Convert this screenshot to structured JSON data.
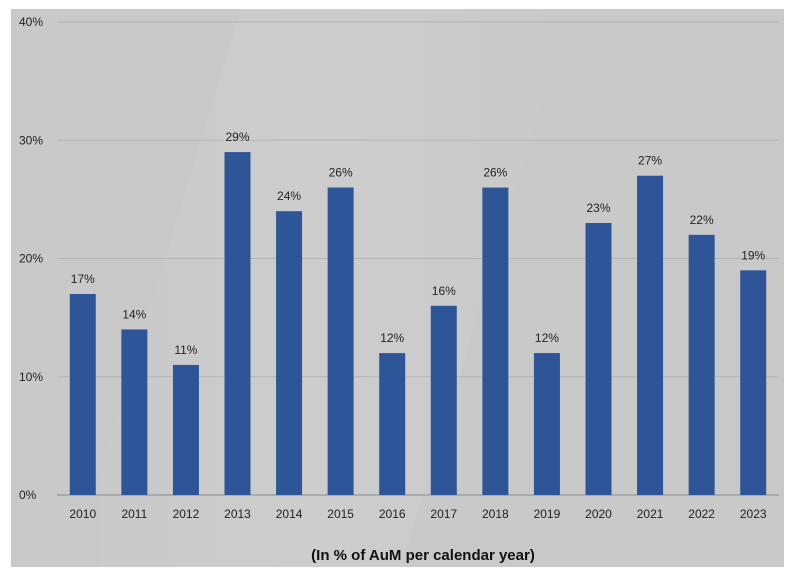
{
  "colors": {
    "bar": "#2d5597",
    "background": "#c9c9c9",
    "grid": "#b4b4b4",
    "axis": "#8a8a8a"
  },
  "chart_data": {
    "type": "bar",
    "categories": [
      "2010",
      "2011",
      "2012",
      "2013",
      "2014",
      "2015",
      "2016",
      "2017",
      "2018",
      "2019",
      "2020",
      "2021",
      "2022",
      "2023"
    ],
    "values": [
      17,
      14,
      11,
      29,
      24,
      26,
      12,
      16,
      26,
      12,
      23,
      27,
      22,
      19
    ],
    "data_labels": [
      "17%",
      "14%",
      "11%",
      "29%",
      "24%",
      "26%",
      "12%",
      "16%",
      "26%",
      "12%",
      "23%",
      "27%",
      "22%",
      "19%"
    ],
    "y_ticks": [
      0,
      10,
      20,
      30,
      40
    ],
    "y_tick_labels": [
      "0%",
      "10%",
      "20%",
      "30%",
      "40%"
    ],
    "ylim": [
      0,
      40
    ],
    "xlabel": "(In % of AuM per calendar year)",
    "ylabel": "",
    "title": "",
    "grid": true,
    "legend": "none"
  }
}
